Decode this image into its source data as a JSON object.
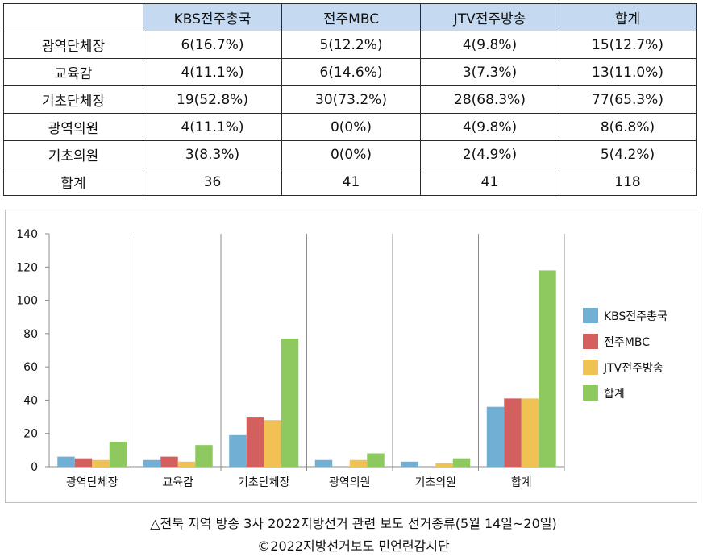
{
  "table": {
    "headers": [
      "",
      "KBS전주총국",
      "전주MBC",
      "JTV전주방송",
      "합계"
    ],
    "rows": [
      [
        "광역단체장",
        "6(16.7%)",
        "5(12.2%)",
        "4(9.8%)",
        "15(12.7%)"
      ],
      [
        "교육감",
        "4(11.1%)",
        "6(14.6%)",
        "3(7.3%)",
        "13(11.0%)"
      ],
      [
        "기초단체장",
        "19(52.8%)",
        "30(73.2%)",
        "28(68.3%)",
        "77(65.3%)"
      ],
      [
        "광역의원",
        "4(11.1%)",
        "0(0%)",
        "4(9.8%)",
        "8(6.8%)"
      ],
      [
        "기초의원",
        "3(8.3%)",
        "0(0%)",
        "2(4.9%)",
        "5(4.2%)"
      ],
      [
        "합계",
        "36",
        "41",
        "41",
        "118"
      ]
    ]
  },
  "chart_data": {
    "type": "bar",
    "categories": [
      "광역단체장",
      "교육감",
      "기초단체장",
      "광역의원",
      "기초의원",
      "합계"
    ],
    "series": [
      {
        "name": "KBS전주총국",
        "color": "#72afd4",
        "values": [
          6,
          4,
          19,
          4,
          3,
          36
        ]
      },
      {
        "name": "전주MBC",
        "color": "#d35f5f",
        "values": [
          5,
          6,
          30,
          0,
          0,
          41
        ]
      },
      {
        "name": "JTV전주방송",
        "color": "#efc253",
        "values": [
          4,
          3,
          28,
          4,
          2,
          41
        ]
      },
      {
        "name": "합계",
        "color": "#8ec95f",
        "values": [
          15,
          13,
          77,
          8,
          5,
          118
        ]
      }
    ],
    "ylim": [
      0,
      140
    ],
    "yticks": [
      0,
      20,
      40,
      60,
      80,
      100,
      120,
      140
    ],
    "grid": "vertical category separators",
    "legend": "right"
  },
  "caption": {
    "line1": "△전북 지역 방송 3사 2022지방선거 관련 보도 선거종류(5월 14일~20일)",
    "line2": "©2022지방선거보도 민언련감시단"
  }
}
